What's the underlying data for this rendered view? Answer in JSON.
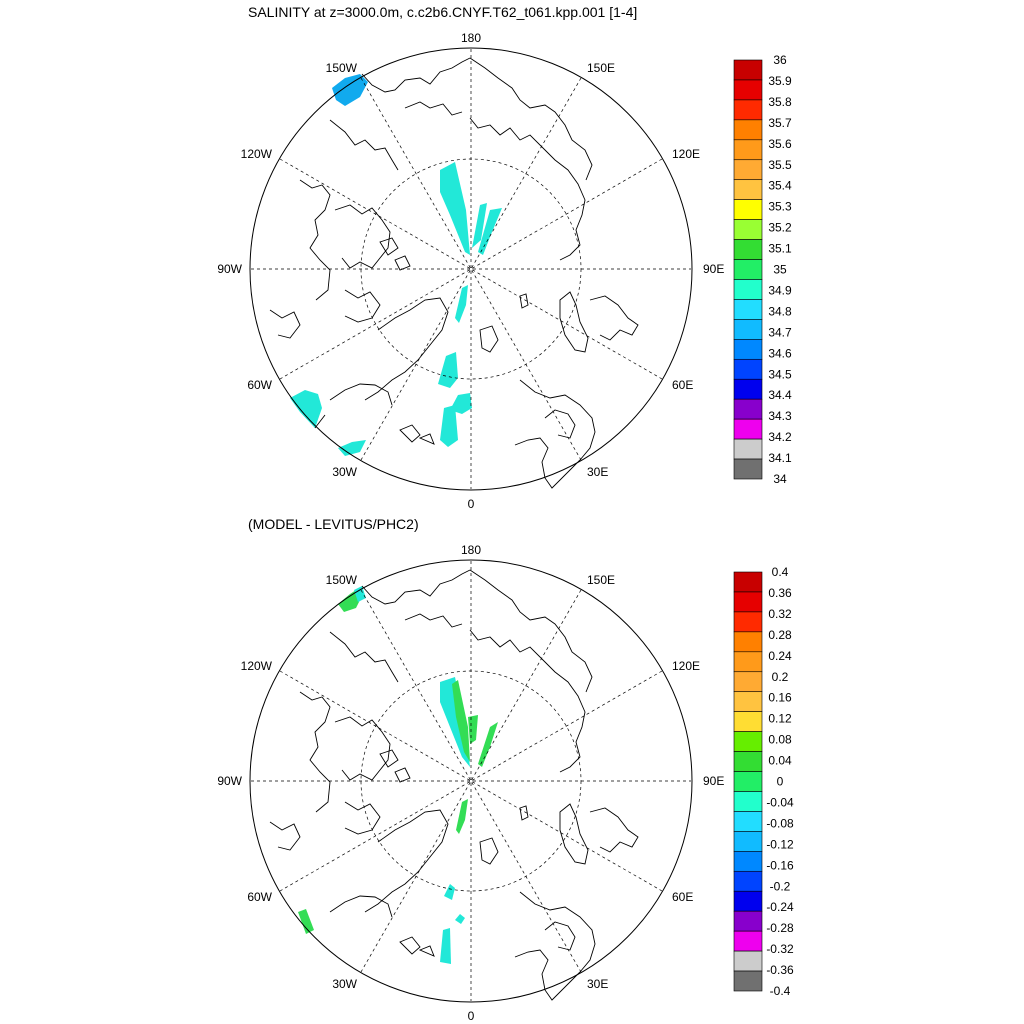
{
  "panels": [
    {
      "title": "SALINITY at z=3000.0m, c.c2b6.CNYF.T62_t061.kpp.001 [1-4]",
      "lon_labels": {
        "top": "180",
        "bottom": "0",
        "left": "90W",
        "right": "90E",
        "ul1": "150W",
        "ul2": "120W",
        "ur1": "150E",
        "ur2": "120E",
        "ll1": "60W",
        "ll2": "30W",
        "lr1": "60E",
        "lr2": "30E"
      },
      "colorbar": {
        "labels": [
          "36",
          "35.9",
          "35.8",
          "35.7",
          "35.6",
          "35.5",
          "35.4",
          "35.3",
          "35.2",
          "35.1",
          "35",
          "34.9",
          "34.8",
          "34.7",
          "34.6",
          "34.5",
          "34.4",
          "34.3",
          "34.2",
          "34.1",
          "34"
        ],
        "colors": [
          "#c80000",
          "#e60000",
          "#ff2a00",
          "#ff8000",
          "#ff9a1a",
          "#ffaa33",
          "#ffc340",
          "#ffff00",
          "#99ff33",
          "#33dd33",
          "#22ee66",
          "#22ffcc",
          "#22ddff",
          "#11bbff",
          "#0088ff",
          "#0044ff",
          "#0000ee",
          "#8800cc",
          "#ee00ee",
          "#cccccc",
          "#707070"
        ]
      }
    },
    {
      "title": "(MODEL - LEVITUS/PHC2)",
      "lon_labels": {
        "top": "180",
        "bottom": "0",
        "left": "90W",
        "right": "90E",
        "ul1": "150W",
        "ul2": "120W",
        "ur1": "150E",
        "ur2": "120E",
        "ll1": "60W",
        "ll2": "30W",
        "lr1": "60E",
        "lr2": "30E"
      },
      "colorbar": {
        "labels": [
          "0.4",
          "0.36",
          "0.32",
          "0.28",
          "0.24",
          "0.2",
          "0.16",
          "0.12",
          "0.08",
          "0.04",
          "0",
          "-0.04",
          "-0.08",
          "-0.12",
          "-0.16",
          "-0.2",
          "-0.24",
          "-0.28",
          "-0.32",
          "-0.36",
          "-0.4"
        ],
        "colors": [
          "#c80000",
          "#e60000",
          "#ff2a00",
          "#ff8000",
          "#ff9a1a",
          "#ffaa33",
          "#ffc340",
          "#ffdd33",
          "#66ee00",
          "#33dd33",
          "#22ee66",
          "#22ffcc",
          "#22ddff",
          "#11bbff",
          "#0088ff",
          "#0044ff",
          "#0000ee",
          "#8800cc",
          "#ee00ee",
          "#cccccc",
          "#707070"
        ]
      }
    }
  ],
  "field_colors": {
    "top_main": "#22e8d8",
    "top_blue": "#11aaee",
    "bottom_main": "#22e8d8",
    "bottom_green": "#33dd55"
  }
}
